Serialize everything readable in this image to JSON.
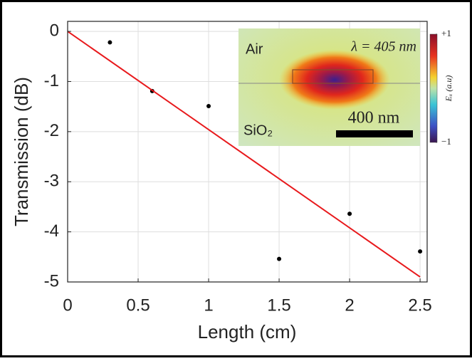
{
  "chart_data": {
    "type": "scatter",
    "xlabel": "Length (cm)",
    "ylabel": "Transmission (dB)",
    "xlim": [
      0,
      2.55
    ],
    "ylim": [
      -5,
      0.2
    ],
    "xticks": [
      0,
      0.5,
      1,
      1.5,
      2,
      2.5
    ],
    "yticks": [
      0,
      -1,
      -2,
      -3,
      -4,
      -5
    ],
    "grid": true,
    "series": [
      {
        "type": "scatter",
        "color": "#000000",
        "x": [
          0.3,
          0.6,
          1.0,
          1.5,
          2.0,
          2.5
        ],
        "values": [
          -0.22,
          -1.19,
          -1.49,
          -4.54,
          -3.64,
          -4.39
        ]
      },
      {
        "type": "line",
        "color": "#e8191c",
        "x": [
          0,
          2.5
        ],
        "values": [
          0,
          -4.9
        ]
      }
    ],
    "inset": {
      "annotations": [
        "Air",
        "λ = 405 nm",
        "SiO₂",
        "400 nm"
      ],
      "colorbar": {
        "label": "Eₓ (a.u)",
        "lim": [
          -1,
          1
        ],
        "ticks": [
          {
            "value": 1,
            "label": "+1"
          },
          {
            "value": -1,
            "label": "−1"
          }
        ]
      }
    }
  }
}
